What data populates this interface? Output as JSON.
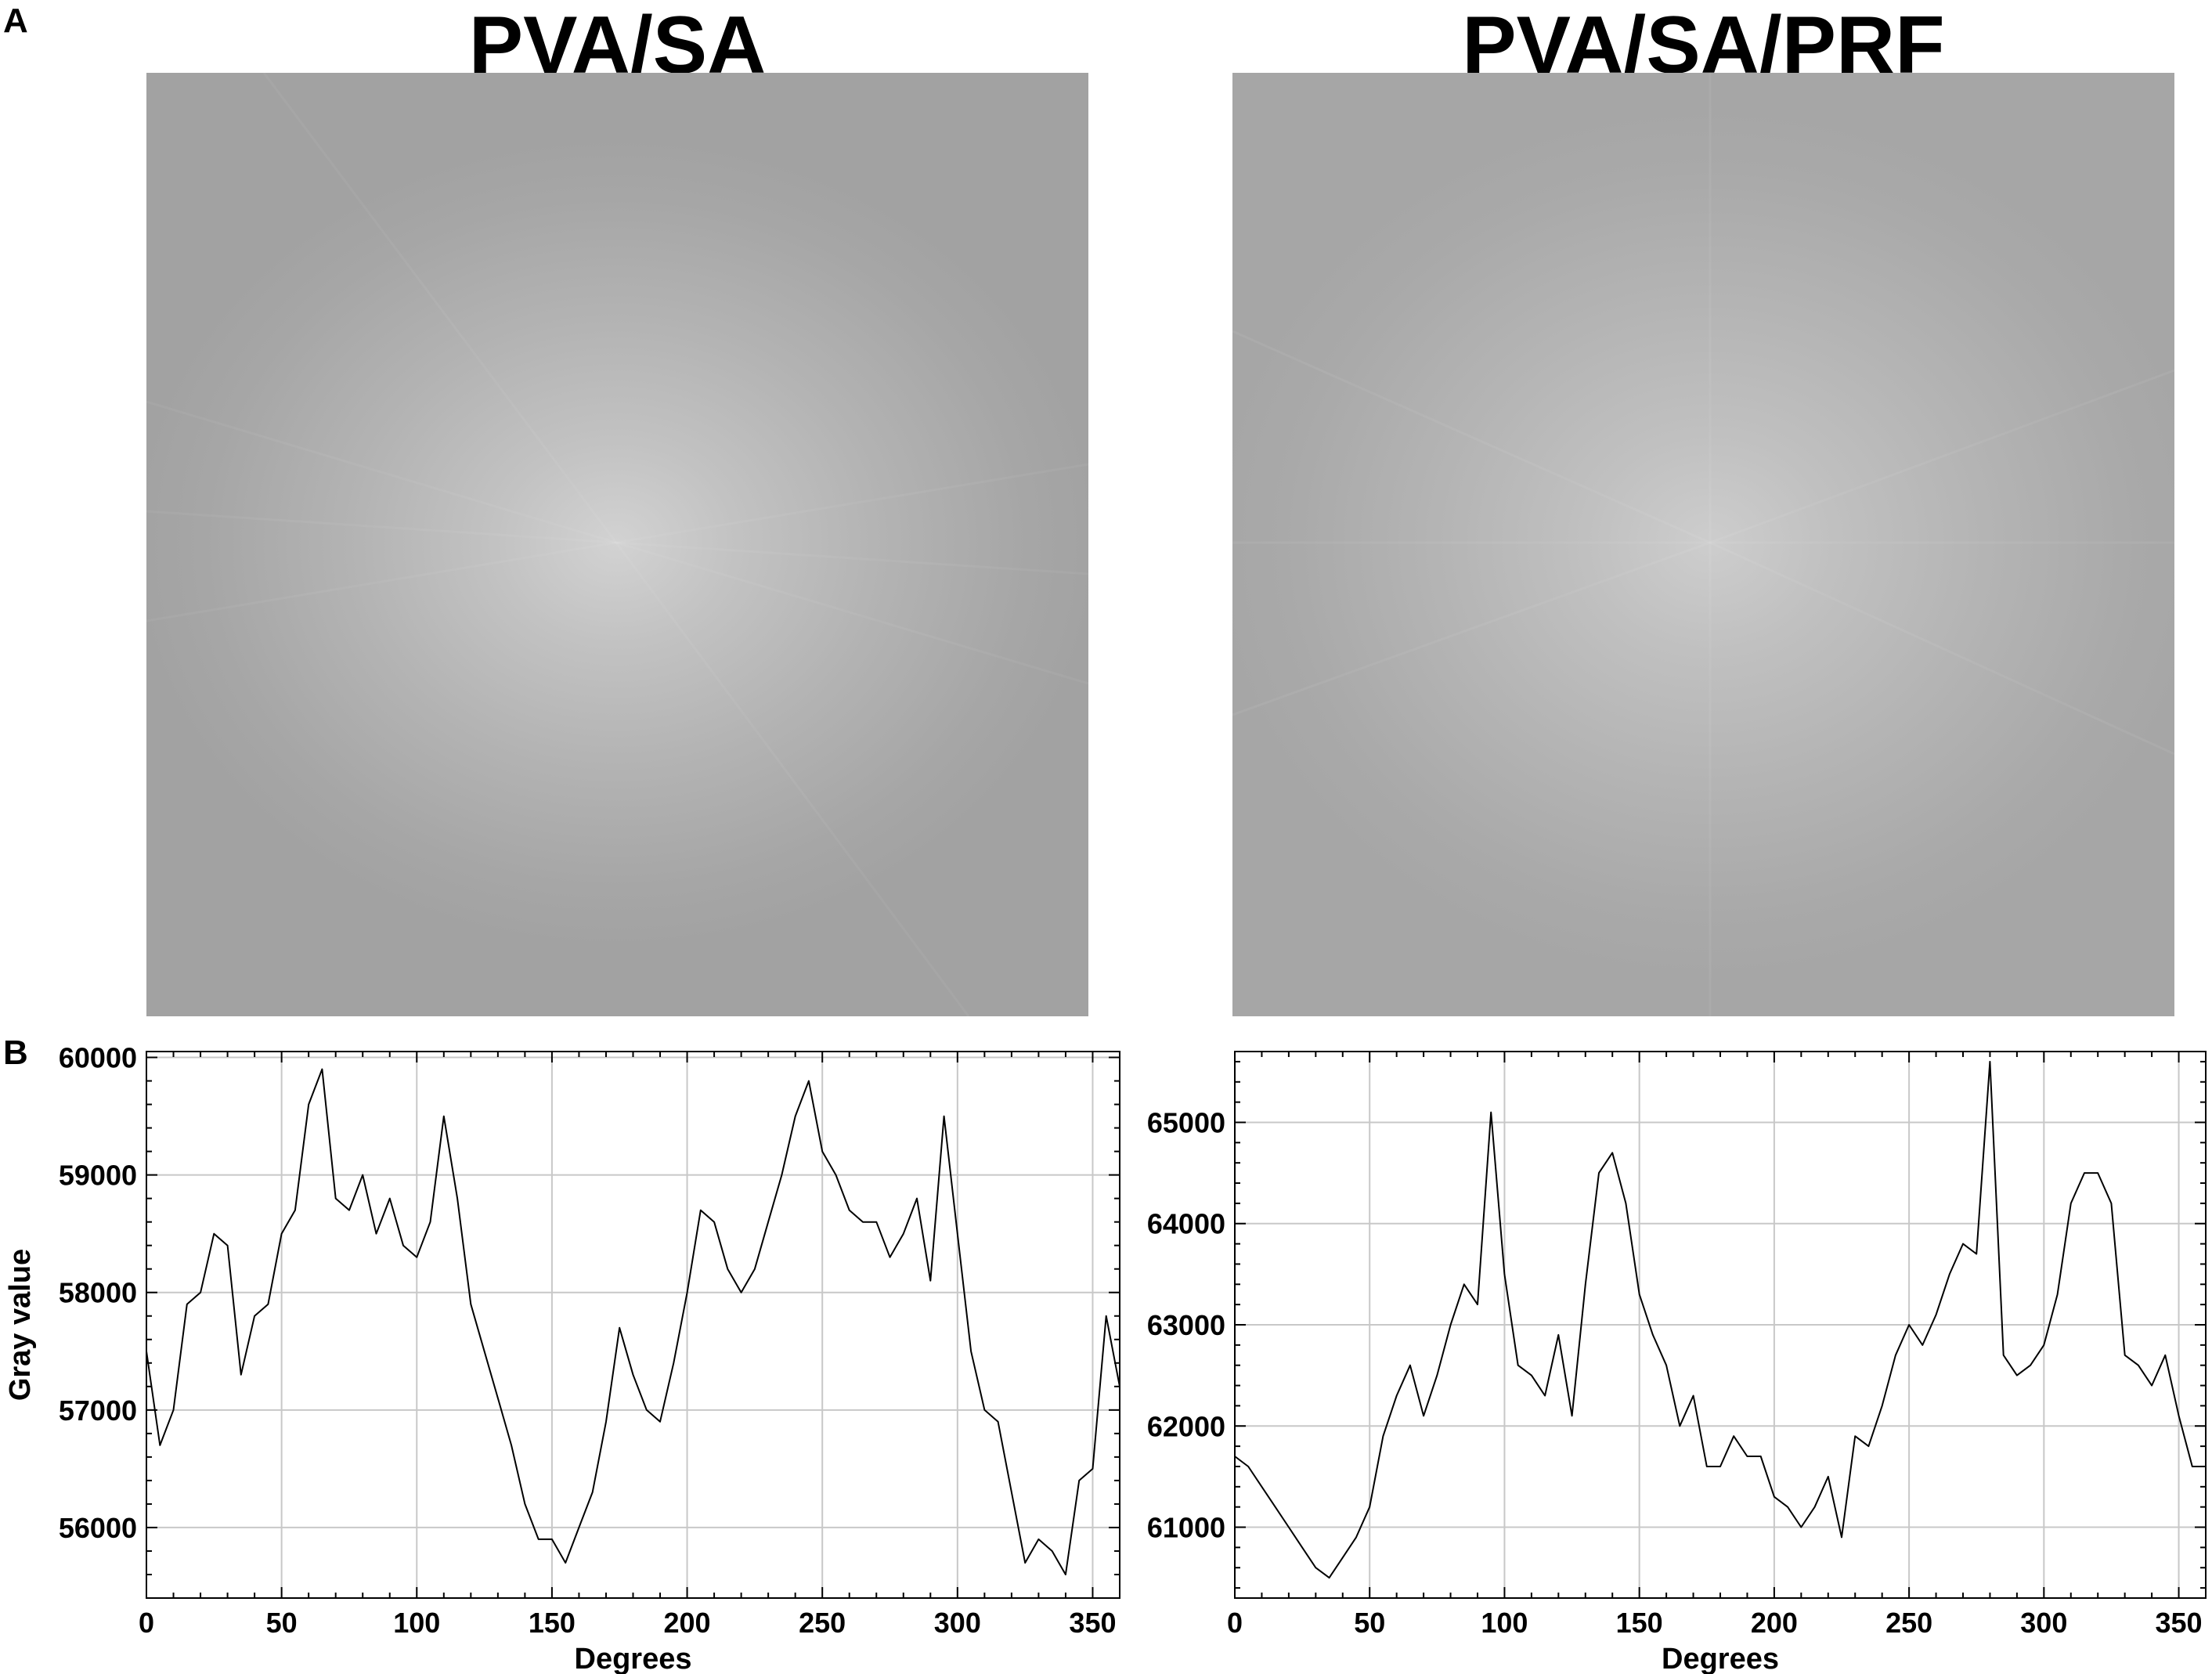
{
  "panels": {
    "a_label": "A",
    "b_label": "B"
  },
  "images": {
    "left_title": "PVA/SA",
    "right_title": "PVA/SA/PRF"
  },
  "chart_data": [
    {
      "type": "line",
      "xlabel": "Degrees",
      "ylabel": "Gray value",
      "xlim": [
        0,
        360
      ],
      "ylim": [
        55400,
        60050
      ],
      "xticks": [
        0,
        50,
        100,
        150,
        200,
        250,
        300,
        350
      ],
      "yticks": [
        56000,
        57000,
        58000,
        59000,
        60000
      ],
      "grid": true,
      "color": "#000000",
      "x": [
        0,
        5,
        10,
        15,
        20,
        25,
        30,
        35,
        40,
        45,
        50,
        55,
        60,
        65,
        70,
        75,
        80,
        85,
        90,
        95,
        100,
        105,
        110,
        115,
        120,
        125,
        130,
        135,
        140,
        145,
        150,
        155,
        160,
        165,
        170,
        175,
        180,
        185,
        190,
        195,
        200,
        205,
        210,
        215,
        220,
        225,
        230,
        235,
        240,
        245,
        250,
        255,
        260,
        265,
        270,
        275,
        280,
        285,
        290,
        295,
        300,
        305,
        310,
        315,
        320,
        325,
        330,
        335,
        340,
        345,
        350,
        355,
        360
      ],
      "y": [
        57500,
        56700,
        57000,
        57900,
        58000,
        58500,
        58400,
        57300,
        57800,
        57900,
        58500,
        58700,
        59600,
        59900,
        58800,
        58700,
        59000,
        58500,
        58800,
        58400,
        58300,
        58600,
        59500,
        58800,
        57900,
        57500,
        57100,
        56700,
        56200,
        55900,
        55900,
        55700,
        56000,
        56300,
        56900,
        57700,
        57300,
        57000,
        56900,
        57400,
        58000,
        58700,
        58600,
        58200,
        58000,
        58200,
        58600,
        59000,
        59500,
        59800,
        59200,
        59000,
        58700,
        58600,
        58600,
        58300,
        58500,
        58800,
        58100,
        59500,
        58500,
        57500,
        57000,
        56900,
        56300,
        55700,
        55900,
        55800,
        55600,
        56400,
        56500,
        57800,
        57200
      ]
    },
    {
      "type": "line",
      "xlabel": "Degrees",
      "ylabel": "",
      "xlim": [
        0,
        360
      ],
      "ylim": [
        60300,
        65700
      ],
      "xticks": [
        0,
        50,
        100,
        150,
        200,
        250,
        300,
        350
      ],
      "yticks": [
        61000,
        62000,
        63000,
        64000,
        65000
      ],
      "grid": true,
      "color": "#000000",
      "x": [
        0,
        5,
        10,
        15,
        20,
        25,
        30,
        35,
        40,
        45,
        50,
        55,
        60,
        65,
        70,
        75,
        80,
        85,
        90,
        95,
        100,
        105,
        110,
        115,
        120,
        125,
        130,
        135,
        140,
        145,
        150,
        155,
        160,
        165,
        170,
        175,
        180,
        185,
        190,
        195,
        200,
        205,
        210,
        215,
        220,
        225,
        230,
        235,
        240,
        245,
        250,
        255,
        260,
        265,
        270,
        275,
        280,
        285,
        290,
        295,
        300,
        305,
        310,
        315,
        320,
        325,
        330,
        335,
        340,
        345,
        350,
        355,
        360
      ],
      "y": [
        61700,
        61600,
        61400,
        61200,
        61000,
        60800,
        60600,
        60500,
        60700,
        60900,
        61200,
        61900,
        62300,
        62600,
        62100,
        62500,
        63000,
        63400,
        63200,
        65100,
        63500,
        62600,
        62500,
        62300,
        62900,
        62100,
        63400,
        64500,
        64700,
        64200,
        63300,
        62900,
        62600,
        62000,
        62300,
        61600,
        61600,
        61900,
        61700,
        61700,
        61300,
        61200,
        61000,
        61200,
        61500,
        60900,
        61900,
        61800,
        62200,
        62700,
        63000,
        62800,
        63100,
        63500,
        63800,
        63700,
        65600,
        62700,
        62500,
        62600,
        62800,
        63300,
        64200,
        64500,
        64500,
        64200,
        62700,
        62600,
        62400,
        62700,
        62100,
        61600,
        61600
      ]
    }
  ]
}
